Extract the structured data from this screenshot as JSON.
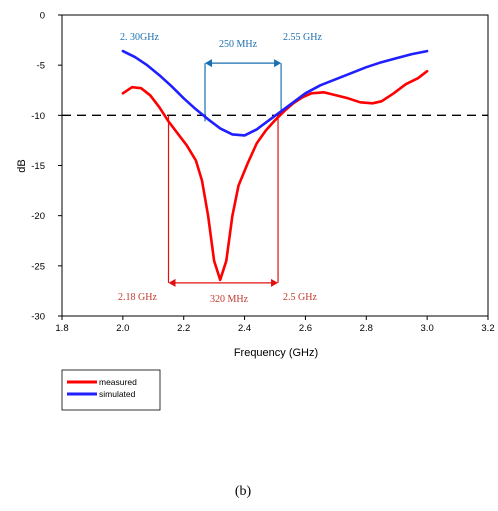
{
  "chart_data": {
    "type": "line",
    "title": "",
    "xlabel": "Frequency (GHz)",
    "ylabel": "dB",
    "xlim": [
      1.8,
      3.2
    ],
    "ylim": [
      -30,
      0
    ],
    "x_ticks": [
      "1.8",
      "2.0",
      "2.2",
      "2.4",
      "2.6",
      "2.8",
      "3.0",
      "3.2"
    ],
    "y_ticks": [
      "0",
      "-5",
      "-10",
      "-15",
      "-20",
      "-25",
      "-30"
    ],
    "grid": false,
    "reference_line": {
      "y": -10,
      "style": "dashed"
    },
    "series": [
      {
        "name": "measured",
        "color": "#ff0000",
        "points": [
          [
            2.0,
            -7.8
          ],
          [
            2.03,
            -7.2
          ],
          [
            2.06,
            -7.3
          ],
          [
            2.09,
            -8.0
          ],
          [
            2.12,
            -9.2
          ],
          [
            2.15,
            -10.6
          ],
          [
            2.18,
            -11.8
          ],
          [
            2.21,
            -13.0
          ],
          [
            2.24,
            -14.5
          ],
          [
            2.26,
            -16.5
          ],
          [
            2.28,
            -20.0
          ],
          [
            2.3,
            -24.5
          ],
          [
            2.32,
            -26.4
          ],
          [
            2.34,
            -24.5
          ],
          [
            2.36,
            -20.0
          ],
          [
            2.38,
            -17.0
          ],
          [
            2.41,
            -14.8
          ],
          [
            2.44,
            -12.8
          ],
          [
            2.47,
            -11.5
          ],
          [
            2.5,
            -10.5
          ],
          [
            2.53,
            -9.6
          ],
          [
            2.56,
            -8.8
          ],
          [
            2.59,
            -8.2
          ],
          [
            2.62,
            -7.8
          ],
          [
            2.66,
            -7.7
          ],
          [
            2.7,
            -8.0
          ],
          [
            2.74,
            -8.3
          ],
          [
            2.78,
            -8.7
          ],
          [
            2.82,
            -8.8
          ],
          [
            2.85,
            -8.6
          ],
          [
            2.89,
            -7.8
          ],
          [
            2.93,
            -6.9
          ],
          [
            2.97,
            -6.3
          ],
          [
            3.0,
            -5.6
          ]
        ]
      },
      {
        "name": "simulated",
        "color": "#1f1fff",
        "points": [
          [
            2.0,
            -3.6
          ],
          [
            2.04,
            -4.2
          ],
          [
            2.08,
            -5.0
          ],
          [
            2.12,
            -6.0
          ],
          [
            2.16,
            -7.1
          ],
          [
            2.2,
            -8.3
          ],
          [
            2.24,
            -9.4
          ],
          [
            2.28,
            -10.4
          ],
          [
            2.32,
            -11.3
          ],
          [
            2.36,
            -11.9
          ],
          [
            2.4,
            -12.0
          ],
          [
            2.44,
            -11.4
          ],
          [
            2.48,
            -10.5
          ],
          [
            2.52,
            -9.6
          ],
          [
            2.56,
            -8.7
          ],
          [
            2.6,
            -7.8
          ],
          [
            2.65,
            -7.0
          ],
          [
            2.7,
            -6.4
          ],
          [
            2.75,
            -5.8
          ],
          [
            2.8,
            -5.2
          ],
          [
            2.85,
            -4.7
          ],
          [
            2.9,
            -4.3
          ],
          [
            2.95,
            -3.9
          ],
          [
            3.0,
            -3.6
          ]
        ]
      }
    ],
    "annotations": {
      "blue": {
        "color": "#1a6fb0",
        "left_label": "2. 30GHz",
        "right_label": "2.55 GHz",
        "bandwidth_label": "250 MHz",
        "x_start": 2.27,
        "x_end": 2.52,
        "arrow_y": -4.8
      },
      "red": {
        "color": "#e01010",
        "left_label": "2.18 GHz",
        "right_label": "2.5 GHz",
        "bandwidth_label": "320 MHz",
        "x_start": 2.15,
        "x_end": 2.51,
        "arrow_y": -26.7
      }
    },
    "legend": {
      "placement": "bottom-left",
      "entries": [
        "measured",
        "simulated"
      ]
    }
  },
  "caption": "(b)"
}
